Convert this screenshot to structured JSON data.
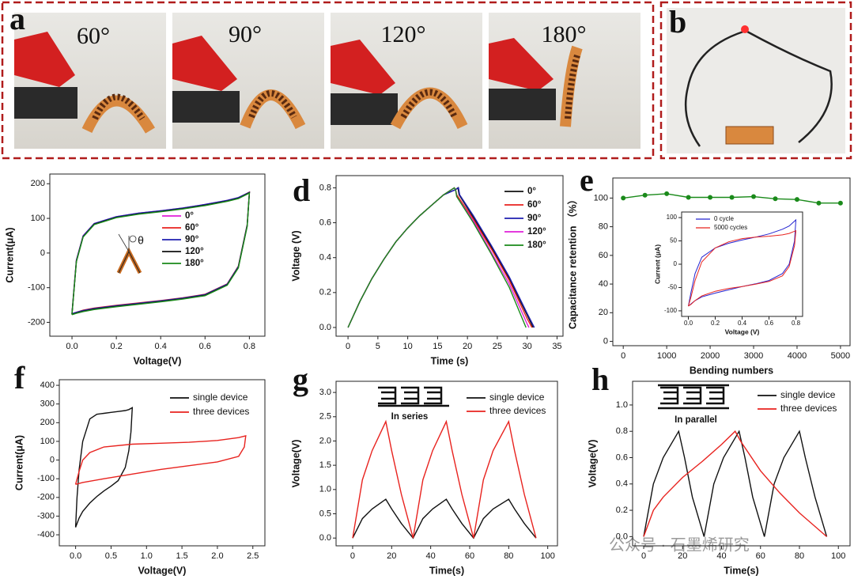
{
  "photos": {
    "panel_a": "a",
    "angles": [
      "60°",
      "90°",
      "120°",
      "180°"
    ],
    "panel_b": "b"
  },
  "watermark": "公众号 · 石墨烯研究",
  "chart_data": [
    {
      "type": "line",
      "annotation": "θ",
      "xlabel": "Voltage(V)",
      "ylabel": "Current(μA)",
      "xlim": [
        -0.1,
        0.87
      ],
      "ylim": [
        -240,
        228
      ],
      "xticks": [
        {
          "value": 0,
          "label": "0.0"
        },
        0.2,
        0.4,
        0.6,
        0.8
      ],
      "yticks": [
        -200,
        -100,
        0,
        100,
        200
      ],
      "x": [
        0,
        0.02,
        0.05,
        0.1,
        0.2,
        0.3,
        0.4,
        0.5,
        0.6,
        0.7,
        0.75,
        0.8,
        0.79,
        0.75,
        0.7,
        0.6,
        0.5,
        0.4,
        0.3,
        0.2,
        0.1,
        0.05,
        0.02,
        0
      ],
      "series": [
        {
          "name": "0°",
          "color": "#e01fd8",
          "values": [
            -175,
            -20,
            50,
            85,
            105,
            115,
            122,
            130,
            140,
            152,
            160,
            175,
            80,
            -40,
            -90,
            -120,
            -130,
            -138,
            -145,
            -152,
            -160,
            -166,
            -171,
            -175
          ]
        },
        {
          "name": "60°",
          "color": "#e8231f",
          "values": [
            -176,
            -22,
            48,
            84,
            104,
            114,
            121,
            129,
            139,
            151,
            159,
            176,
            82,
            -38,
            -89,
            -119,
            -129,
            -137,
            -144,
            -151,
            -159,
            -165,
            -171,
            -176
          ]
        },
        {
          "name": "90°",
          "color": "#1f1fb0",
          "values": [
            -175,
            -21,
            49,
            85,
            105,
            115,
            122,
            130,
            140,
            152,
            160,
            175,
            81,
            -39,
            -90,
            -120,
            -130,
            -138,
            -145,
            -152,
            -160,
            -166,
            -171,
            -175
          ]
        },
        {
          "name": "120°",
          "color": "#111111",
          "values": [
            -177,
            -24,
            47,
            83,
            103,
            113,
            120,
            128,
            138,
            150,
            158,
            174,
            78,
            -42,
            -92,
            -122,
            -132,
            -140,
            -147,
            -154,
            -162,
            -168,
            -173,
            -177
          ]
        },
        {
          "name": "180°",
          "color": "#1a8a1a",
          "values": [
            -178,
            -25,
            46,
            82,
            102,
            112,
            119,
            127,
            137,
            149,
            157,
            173,
            77,
            -43,
            -93,
            -123,
            -133,
            -141,
            -148,
            -155,
            -163,
            -169,
            -174,
            -178
          ]
        }
      ]
    },
    {
      "type": "line",
      "panel": "d",
      "xlabel": "Time (s)",
      "ylabel": "Voltage (V)",
      "xlim": [
        -2,
        36
      ],
      "ylim": [
        -0.05,
        0.87
      ],
      "xticks": [
        0,
        5,
        10,
        15,
        20,
        25,
        30,
        35
      ],
      "yticks": [
        {
          "value": 0,
          "label": "0.0"
        },
        0.2,
        0.4,
        0.6,
        0.8
      ],
      "series": [
        {
          "name": "0°",
          "color": "#111111",
          "x": [
            0,
            2,
            4,
            6,
            8,
            10,
            12,
            14,
            16,
            18,
            18.4,
            18.6,
            21,
            24,
            27,
            30,
            31
          ],
          "values": [
            0,
            0.15,
            0.28,
            0.39,
            0.49,
            0.57,
            0.64,
            0.7,
            0.76,
            0.79,
            0.8,
            0.76,
            0.63,
            0.46,
            0.28,
            0.07,
            0
          ]
        },
        {
          "name": "60°",
          "color": "#e8231f",
          "x": [
            0,
            2,
            4,
            6,
            8,
            10,
            12,
            14,
            16,
            17.8,
            18,
            18.2,
            21,
            24,
            27,
            30,
            30.8
          ],
          "values": [
            0,
            0.15,
            0.28,
            0.39,
            0.49,
            0.57,
            0.64,
            0.7,
            0.76,
            0.8,
            0.79,
            0.76,
            0.62,
            0.45,
            0.27,
            0.05,
            0
          ]
        },
        {
          "name": "90°",
          "color": "#1f1fb0",
          "x": [
            0,
            2,
            4,
            6,
            8,
            10,
            12,
            14,
            16,
            18,
            18.5,
            18.7,
            21,
            24,
            27,
            30,
            31.2
          ],
          "values": [
            0,
            0.15,
            0.28,
            0.39,
            0.49,
            0.57,
            0.64,
            0.7,
            0.76,
            0.79,
            0.8,
            0.76,
            0.64,
            0.47,
            0.29,
            0.08,
            0
          ]
        },
        {
          "name": "120°",
          "color": "#e01fd8",
          "x": [
            0,
            2,
            4,
            6,
            8,
            10,
            12,
            14,
            16,
            17.8,
            18,
            18.2,
            21,
            24,
            27,
            30,
            30.3
          ],
          "values": [
            0,
            0.15,
            0.28,
            0.39,
            0.49,
            0.57,
            0.64,
            0.7,
            0.76,
            0.8,
            0.79,
            0.75,
            0.61,
            0.43,
            0.25,
            0.02,
            0
          ]
        },
        {
          "name": "180°",
          "color": "#1a8a1a",
          "x": [
            0,
            2,
            4,
            6,
            8,
            10,
            12,
            14,
            16,
            17.8,
            18,
            18.2,
            21,
            24,
            27,
            29.8
          ],
          "values": [
            0,
            0.15,
            0.28,
            0.39,
            0.49,
            0.57,
            0.64,
            0.7,
            0.76,
            0.8,
            0.79,
            0.75,
            0.6,
            0.42,
            0.23,
            0
          ]
        }
      ]
    },
    {
      "type": "line",
      "panel": "e",
      "markers": true,
      "xlabel": "Bending numbers",
      "ylabel": "Capacitance retention （%）",
      "xlim": [
        -240,
        5220
      ],
      "ylim": [
        -3,
        114
      ],
      "xticks": [
        0,
        1000,
        2000,
        3000,
        4000,
        5000
      ],
      "yticks": [
        0,
        20,
        40,
        60,
        80,
        100
      ],
      "series": [
        {
          "color": "#1a8a1a",
          "x": [
            0,
            500,
            1000,
            1500,
            2000,
            2500,
            3000,
            3500,
            4000,
            4500,
            5000
          ],
          "values": [
            100,
            102,
            103,
            100.5,
            100.5,
            100.5,
            101,
            99.5,
            99,
            96.5,
            96.5
          ]
        }
      ],
      "inset": {
        "type": "line",
        "xlabel": "Voltage (V)",
        "ylabel": "Current (μA)",
        "xlim": [
          -0.05,
          0.85
        ],
        "ylim": [
          -112,
          112
        ],
        "xticks": [
          {
            "value": 0,
            "label": "0.0"
          },
          0.2,
          0.4,
          0.6,
          0.8
        ],
        "yticks": [
          -100,
          -50,
          0,
          50,
          100
        ],
        "x": [
          0,
          0.02,
          0.05,
          0.1,
          0.2,
          0.3,
          0.4,
          0.5,
          0.6,
          0.7,
          0.75,
          0.8,
          0.79,
          0.75,
          0.7,
          0.6,
          0.5,
          0.4,
          0.3,
          0.2,
          0.1,
          0.05,
          0.02,
          0
        ],
        "series": [
          {
            "name": "0 cycle",
            "color": "#2323d0",
            "values": [
              -90,
              -60,
              -20,
              15,
              35,
              45,
              52,
              58,
              65,
              75,
              82,
              95,
              50,
              0,
              -20,
              -35,
              -42,
              -48,
              -55,
              -62,
              -70,
              -78,
              -85,
              -90
            ]
          },
          {
            "name": "5000 cycles",
            "color": "#e8231f",
            "values": [
              -90,
              -70,
              -35,
              5,
              35,
              48,
              55,
              58,
              60,
              63,
              66,
              72,
              40,
              -5,
              -25,
              -37,
              -43,
              -48,
              -52,
              -58,
              -68,
              -78,
              -86,
              -90
            ]
          }
        ]
      }
    },
    {
      "type": "line",
      "panel": "f",
      "xlabel": "Voltage(V)",
      "ylabel": "Current(μA)",
      "xlim": [
        -0.23,
        2.67
      ],
      "ylim": [
        -459,
        430
      ],
      "xticks": [
        {
          "value": 0,
          "label": "0.0"
        },
        0.5,
        {
          "value": 1,
          "label": "1.0"
        },
        1.5,
        {
          "value": 2,
          "label": "2.0"
        },
        2.5
      ],
      "yticks": [
        -400,
        -300,
        -200,
        -100,
        0,
        100,
        200,
        300,
        400
      ],
      "series": [
        {
          "name": "single device",
          "color": "#111111",
          "x": [
            0,
            0.02,
            0.05,
            0.1,
            0.2,
            0.3,
            0.4,
            0.5,
            0.6,
            0.7,
            0.75,
            0.8,
            0.78,
            0.75,
            0.7,
            0.6,
            0.5,
            0.4,
            0.3,
            0.2,
            0.1,
            0.05,
            0.02,
            0
          ],
          "values": [
            -360,
            -200,
            -50,
            100,
            220,
            245,
            250,
            255,
            260,
            265,
            270,
            280,
            150,
            50,
            -40,
            -110,
            -140,
            -165,
            -195,
            -230,
            -275,
            -310,
            -340,
            -360
          ]
        },
        {
          "name": "three devices",
          "color": "#e8231f",
          "x": [
            0,
            0.05,
            0.1,
            0.2,
            0.4,
            0.8,
            1.2,
            1.6,
            2,
            2.3,
            2.4,
            2.38,
            2.3,
            2,
            1.6,
            1.2,
            0.8,
            0.4,
            0.1,
            0
          ],
          "values": [
            -130,
            -60,
            0,
            40,
            70,
            85,
            90,
            95,
            105,
            120,
            130,
            70,
            20,
            -10,
            -30,
            -50,
            -75,
            -100,
            -120,
            -130
          ]
        }
      ]
    },
    {
      "type": "line",
      "panel": "g",
      "annotation": "In series",
      "xlabel": "Time(s)",
      "ylabel": "Voltage(V)",
      "xlim": [
        -8.5,
        105
      ],
      "ylim": [
        -0.16,
        3.23
      ],
      "xticks": [
        0,
        20,
        40,
        60,
        80,
        100
      ],
      "yticks": [
        {
          "value": 0,
          "label": "0.0"
        },
        0.5,
        {
          "value": 1,
          "label": "1.0"
        },
        1.5,
        {
          "value": 2,
          "label": "2.0"
        },
        2.5,
        {
          "value": 3,
          "label": "3.0"
        }
      ],
      "x": [
        0,
        5,
        10,
        17,
        20,
        25,
        31,
        36,
        41,
        48,
        51,
        56,
        62,
        67,
        72,
        80,
        83,
        88,
        94
      ],
      "series": [
        {
          "name": "single device",
          "color": "#111111",
          "values": [
            0,
            0.4,
            0.6,
            0.8,
            0.6,
            0.3,
            0,
            0.4,
            0.6,
            0.8,
            0.6,
            0.3,
            0,
            0.4,
            0.6,
            0.8,
            0.6,
            0.3,
            0
          ]
        },
        {
          "name": "three devices",
          "color": "#e8231f",
          "values": [
            0,
            1.2,
            1.8,
            2.4,
            1.8,
            0.9,
            0,
            1.2,
            1.8,
            2.4,
            1.8,
            0.9,
            0,
            1.2,
            1.8,
            2.4,
            1.8,
            0.9,
            0
          ]
        }
      ]
    },
    {
      "type": "line",
      "panel": "h",
      "annotation": "In parallel",
      "xlabel": "Time(s)",
      "ylabel": "Voltage(V)",
      "xlim": [
        -5.7,
        106
      ],
      "ylim": [
        -0.07,
        1.18
      ],
      "xticks": [
        0,
        20,
        40,
        60,
        80,
        100
      ],
      "yticks": [
        {
          "value": 0,
          "label": "0.0"
        },
        0.2,
        0.4,
        0.6,
        0.8,
        {
          "value": 1,
          "label": "1.0"
        }
      ],
      "series": [
        {
          "name": "single device",
          "color": "#111111",
          "x": [
            0,
            5,
            10,
            18,
            21,
            25,
            31,
            36,
            41,
            49,
            52,
            56,
            62,
            67,
            72,
            80,
            83,
            88,
            94
          ],
          "values": [
            0,
            0.4,
            0.6,
            0.8,
            0.6,
            0.3,
            0,
            0.4,
            0.6,
            0.8,
            0.6,
            0.3,
            0,
            0.4,
            0.6,
            0.8,
            0.6,
            0.3,
            0
          ]
        },
        {
          "name": "three devices",
          "color": "#e8231f",
          "x": [
            0,
            5,
            10,
            20,
            30,
            40,
            47,
            50,
            60,
            70,
            80,
            94
          ],
          "values": [
            0,
            0.2,
            0.3,
            0.45,
            0.57,
            0.7,
            0.8,
            0.72,
            0.5,
            0.33,
            0.18,
            0
          ]
        }
      ]
    }
  ]
}
